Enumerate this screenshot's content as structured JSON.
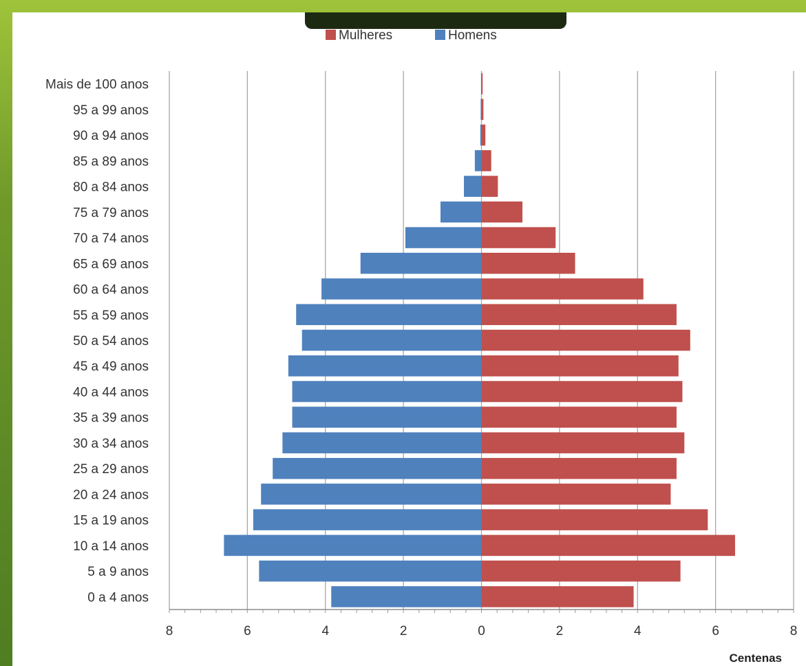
{
  "chart_data": {
    "type": "bar",
    "orientation": "horizontal",
    "categories": [
      "0 a 4 anos",
      "5 a 9 anos",
      "10 a 14 anos",
      "15 a 19 anos",
      "20 a 24 anos",
      "25 a 29 anos",
      "30 a 34 anos",
      "35 a 39 anos",
      "40 a 44 anos",
      "45 a 49 anos",
      "50 a 54 anos",
      "55 a 59 anos",
      "60 a 64 anos",
      "65 a 69 anos",
      "70 a 74 anos",
      "75 a 79 anos",
      "80 a 84 anos",
      "85 a 89 anos",
      "90 a 94 anos",
      "95 a 99 anos",
      "Mais de 100 anos"
    ],
    "series": [
      {
        "name": "Mulheres",
        "color": "#c0504d",
        "values": [
          3.9,
          5.1,
          6.5,
          5.8,
          4.85,
          5.0,
          5.2,
          5.0,
          5.15,
          5.05,
          5.35,
          5.0,
          4.15,
          2.4,
          1.9,
          1.05,
          0.42,
          0.25,
          0.1,
          0.05,
          0.03
        ]
      },
      {
        "name": "Homens",
        "color": "#4f81bd",
        "values": [
          3.85,
          5.7,
          6.6,
          5.85,
          5.65,
          5.35,
          5.1,
          4.85,
          4.85,
          4.95,
          4.6,
          4.75,
          4.1,
          3.1,
          1.95,
          1.05,
          0.45,
          0.17,
          0.03,
          0.02,
          0.01
        ]
      }
    ],
    "xlim": [
      -8,
      8
    ],
    "x_ticks": [
      "8",
      "6",
      "4",
      "2",
      "0",
      "2",
      "4",
      "6",
      "8"
    ],
    "xlabel": "Centenas",
    "legend_position": "top-center",
    "grid": true
  }
}
